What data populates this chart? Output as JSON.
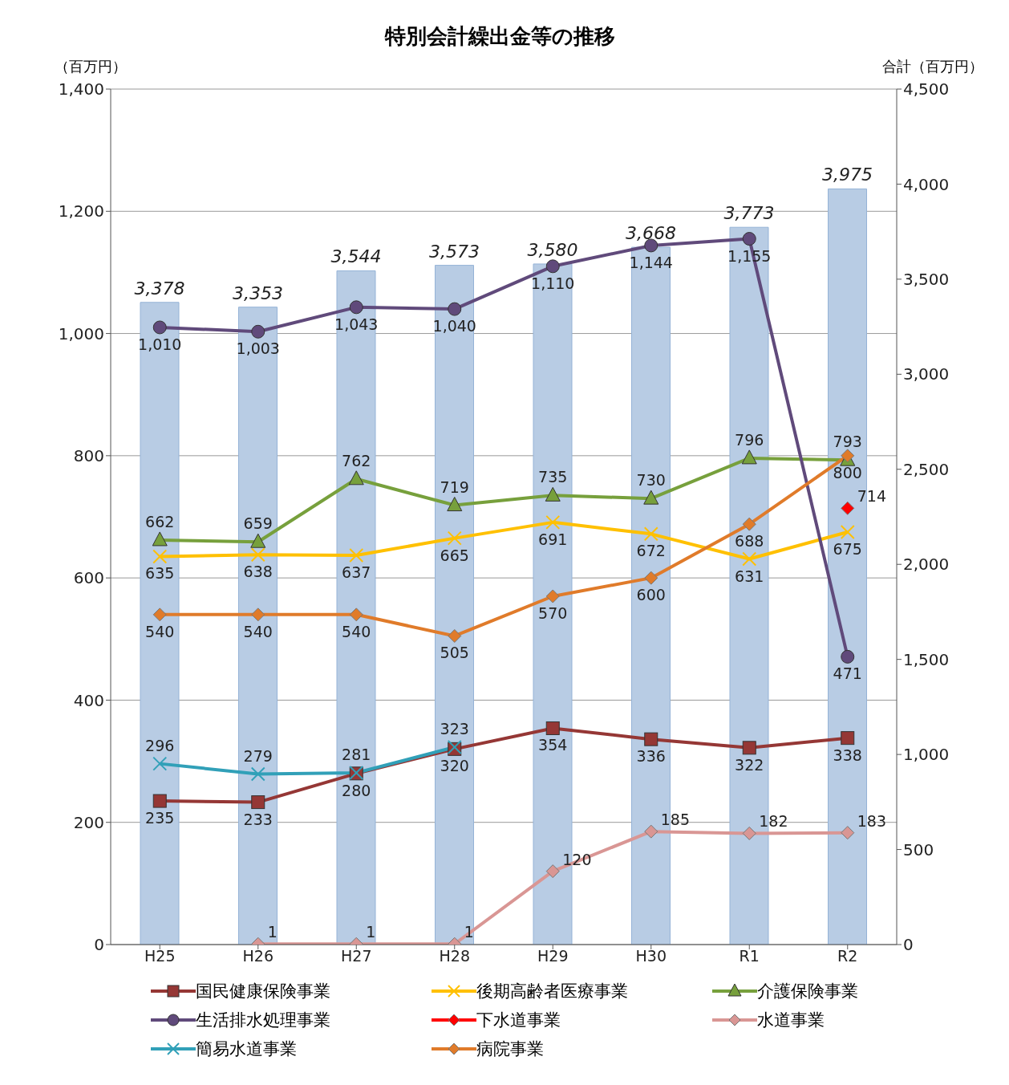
{
  "chart_data": {
    "type": "line",
    "title": "特別会計繰出金等の推移",
    "ylabel": "（百万円）",
    "y2label": "合計（百万円）",
    "categories": [
      "H25",
      "H26",
      "H27",
      "H28",
      "H29",
      "H30",
      "R1",
      "R2"
    ],
    "ylim": [
      0,
      1400
    ],
    "yticks": [
      0,
      200,
      400,
      600,
      800,
      {
        "value": 1000,
        "label": "1,000"
      },
      {
        "value": 1200,
        "label": "1,200"
      },
      {
        "value": 1400,
        "label": "1,400"
      }
    ],
    "y2lim": [
      0,
      4500
    ],
    "y2ticks": [
      0,
      500,
      {
        "value": 1000,
        "label": "1,000"
      },
      {
        "value": 1500,
        "label": "1,500"
      },
      {
        "value": 2000,
        "label": "2,000"
      },
      {
        "value": 2500,
        "label": "2,500"
      },
      {
        "value": 3000,
        "label": "3,000"
      },
      {
        "value": 3500,
        "label": "3,500"
      },
      {
        "value": 4000,
        "label": "4,000"
      },
      {
        "value": 4500,
        "label": "4,500"
      }
    ],
    "grid": "y",
    "legend": "bottom",
    "series": [
      {
        "type": "bar",
        "axis": "y2",
        "color": "#b8cce4",
        "values": [
          3378,
          3353,
          3544,
          3573,
          3580,
          3668,
          3773,
          3975
        ],
        "value_labels": [
          "3,378",
          "3,353",
          "3,544",
          "3,573",
          "3,580",
          "3,668",
          "3,773",
          "3,975"
        ]
      },
      {
        "name": "国民健康保険事業",
        "color": "#953735",
        "marker": "square",
        "values": [
          235,
          233,
          280,
          320,
          354,
          336,
          322,
          338
        ],
        "value_labels": [
          "235",
          "233",
          "280",
          "320",
          "354",
          "336",
          "322",
          "338"
        ]
      },
      {
        "name": "後期高齢者医療事業",
        "color": "#ffc000",
        "marker": "cross",
        "values": [
          635,
          638,
          637,
          665,
          691,
          672,
          631,
          675
        ],
        "value_labels": [
          "635",
          "638",
          "637",
          "665",
          "691",
          "672",
          "631",
          "675"
        ]
      },
      {
        "name": "介護保険事業",
        "color": "#77a03c",
        "marker": "triangle",
        "values": [
          662,
          659,
          762,
          719,
          735,
          730,
          796,
          793
        ],
        "value_labels": [
          "662",
          "659",
          "762",
          "719",
          "735",
          "730",
          "796",
          "793"
        ]
      },
      {
        "name": "生活排水処理事業",
        "color": "#604a7b",
        "marker": "circle",
        "values": [
          1010,
          1003,
          1043,
          1040,
          1110,
          1144,
          1155,
          471
        ],
        "value_labels": [
          "1,010",
          "1,003",
          "1,043",
          "1,040",
          "1,110",
          "1,144",
          "1,155",
          "471"
        ]
      },
      {
        "name": "下水道事業",
        "color": "#ff0000",
        "marker": "diamond",
        "values": [
          null,
          null,
          null,
          null,
          null,
          null,
          null,
          714
        ],
        "value_labels": [
          null,
          null,
          null,
          null,
          null,
          null,
          null,
          "714"
        ]
      },
      {
        "name": "水道事業",
        "color": "#d99694",
        "marker": "diamond",
        "values": [
          null,
          1,
          1,
          1,
          120,
          185,
          182,
          183
        ],
        "value_labels": [
          null,
          "1",
          "1",
          "1",
          "120",
          "185",
          "182",
          "183"
        ]
      },
      {
        "name": "簡易水道事業",
        "color": "#31a0b8",
        "marker": "cross",
        "values": [
          296,
          279,
          281,
          323,
          null,
          null,
          null,
          null
        ],
        "value_labels": [
          "296",
          "279",
          "281",
          "323",
          null,
          null,
          null,
          null
        ]
      },
      {
        "name": "病院事業",
        "color": "#e07b2a",
        "marker": "diamond",
        "values": [
          540,
          540,
          540,
          505,
          570,
          600,
          688,
          800
        ],
        "value_labels": [
          "540",
          "540",
          "540",
          "505",
          "570",
          "600",
          "688",
          "800"
        ]
      }
    ]
  }
}
